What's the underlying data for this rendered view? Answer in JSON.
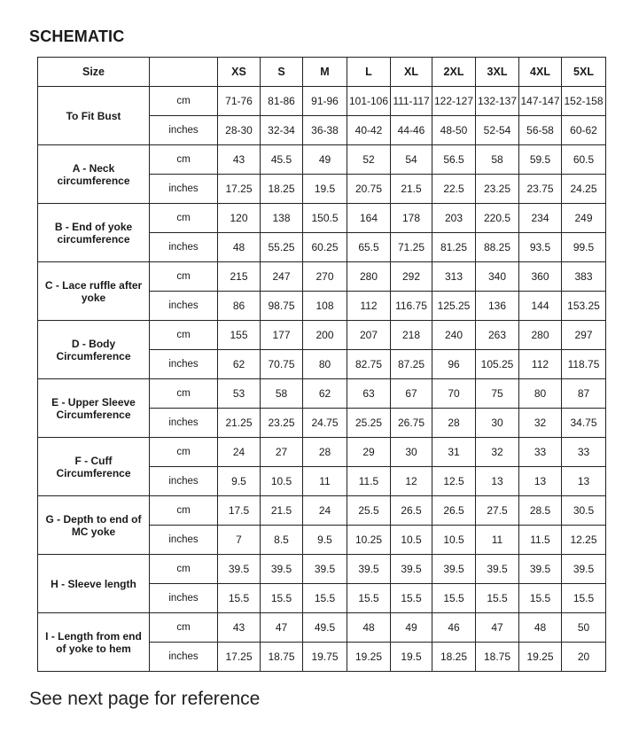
{
  "title": "SCHEMATIC",
  "table": {
    "header": {
      "size_label": "Size",
      "sizes": [
        "XS",
        "S",
        "M",
        "L",
        "XL",
        "2XL",
        "3XL",
        "4XL",
        "5XL"
      ]
    },
    "rows": [
      {
        "label": "To Fit Bust",
        "cm": [
          "71-76",
          "81-86",
          "91-96",
          "101-106",
          "111-117",
          "122-127",
          "132-137",
          "147-147",
          "152-158"
        ],
        "inches": [
          "28-30",
          "32-34",
          "36-38",
          "40-42",
          "44-46",
          "48-50",
          "52-54",
          "56-58",
          "60-62"
        ]
      },
      {
        "label": "A - Neck circumference",
        "cm": [
          "43",
          "45.5",
          "49",
          "52",
          "54",
          "56.5",
          "58",
          "59.5",
          "60.5"
        ],
        "inches": [
          "17.25",
          "18.25",
          "19.5",
          "20.75",
          "21.5",
          "22.5",
          "23.25",
          "23.75",
          "24.25"
        ]
      },
      {
        "label": "B - End of yoke circumference",
        "cm": [
          "120",
          "138",
          "150.5",
          "164",
          "178",
          "203",
          "220.5",
          "234",
          "249"
        ],
        "inches": [
          "48",
          "55.25",
          "60.25",
          "65.5",
          "71.25",
          "81.25",
          "88.25",
          "93.5",
          "99.5"
        ]
      },
      {
        "label": "C - Lace ruffle after yoke",
        "cm": [
          "215",
          "247",
          "270",
          "280",
          "292",
          "313",
          "340",
          "360",
          "383"
        ],
        "inches": [
          "86",
          "98.75",
          "108",
          "112",
          "116.75",
          "125.25",
          "136",
          "144",
          "153.25"
        ]
      },
      {
        "label": "D - Body Circumference",
        "cm": [
          "155",
          "177",
          "200",
          "207",
          "218",
          "240",
          "263",
          "280",
          "297"
        ],
        "inches": [
          "62",
          "70.75",
          "80",
          "82.75",
          "87.25",
          "96",
          "105.25",
          "112",
          "118.75"
        ]
      },
      {
        "label": "E - Upper Sleeve Circumference",
        "cm": [
          "53",
          "58",
          "62",
          "63",
          "67",
          "70",
          "75",
          "80",
          "87"
        ],
        "inches": [
          "21.25",
          "23.25",
          "24.75",
          "25.25",
          "26.75",
          "28",
          "30",
          "32",
          "34.75"
        ]
      },
      {
        "label": "F - Cuff Circumference",
        "cm": [
          "24",
          "27",
          "28",
          "29",
          "30",
          "31",
          "32",
          "33",
          "33"
        ],
        "inches": [
          "9.5",
          "10.5",
          "11",
          "11.5",
          "12",
          "12.5",
          "13",
          "13",
          "13"
        ]
      },
      {
        "label": "G - Depth to end of MC yoke",
        "cm": [
          "17.5",
          "21.5",
          "24",
          "25.5",
          "26.5",
          "26.5",
          "27.5",
          "28.5",
          "30.5"
        ],
        "inches": [
          "7",
          "8.5",
          "9.5",
          "10.25",
          "10.5",
          "10.5",
          "11",
          "11.5",
          "12.25"
        ]
      },
      {
        "label": "H - Sleeve length",
        "cm": [
          "39.5",
          "39.5",
          "39.5",
          "39.5",
          "39.5",
          "39.5",
          "39.5",
          "39.5",
          "39.5"
        ],
        "inches": [
          "15.5",
          "15.5",
          "15.5",
          "15.5",
          "15.5",
          "15.5",
          "15.5",
          "15.5",
          "15.5"
        ]
      },
      {
        "label": "I - Length from end of yoke to hem",
        "cm": [
          "43",
          "47",
          "49.5",
          "48",
          "49",
          "46",
          "47",
          "48",
          "50"
        ],
        "inches": [
          "17.25",
          "18.75",
          "19.75",
          "19.25",
          "19.5",
          "18.25",
          "18.75",
          "19.25",
          "20"
        ]
      }
    ],
    "unit_labels": {
      "cm": "cm",
      "inches": "inches"
    }
  },
  "footer": "See next page for reference"
}
